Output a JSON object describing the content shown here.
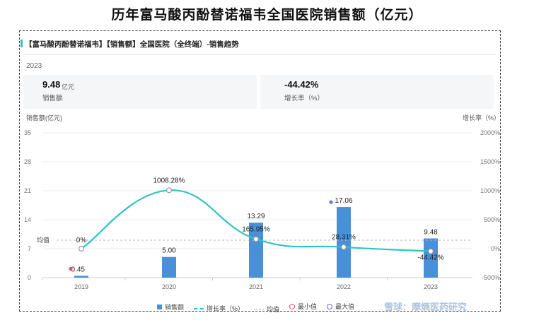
{
  "header": {
    "title": "历年富马酸丙酚替诺福韦全国医院销售额（亿元）"
  },
  "panel": {
    "title": "【富马酸丙酚替诺福韦】【销售额】全国医院（全终端）-销售趋势",
    "year": "2023",
    "metrics": [
      {
        "value": "9.48",
        "unit": "亿元",
        "label": "销售额"
      },
      {
        "value": "-44.42%",
        "unit": "",
        "label": "增长率（%）"
      }
    ]
  },
  "watermark": "雪球：摩熵医药研究",
  "chart_data": {
    "type": "bar+line",
    "categories": [
      "2019",
      "2020",
      "2021",
      "2022",
      "2023"
    ],
    "series": [
      {
        "name": "销售额",
        "type": "bar",
        "axis": "left",
        "color": "#4a90d9",
        "values": [
          0.45,
          5.0,
          13.29,
          17.06,
          9.48
        ],
        "labels": [
          "0.45",
          "5.00",
          "13.29",
          "17.06",
          "9.48"
        ]
      },
      {
        "name": "增长率（%）",
        "type": "line",
        "axis": "right",
        "color": "#2ec4c4",
        "values": [
          0,
          1008.28,
          165.95,
          28.31,
          -44.42
        ],
        "labels": [
          "0%",
          "1008.28%",
          "165.95%",
          "28.31%",
          "-44.42%"
        ]
      }
    ],
    "y_left": {
      "label": "销售额(亿元)",
      "ticks": [
        0,
        7,
        14,
        21,
        28,
        35
      ],
      "range": [
        0,
        35
      ]
    },
    "y_right": {
      "label": "增长率（%）",
      "ticks": [
        "-500%",
        "0%",
        "500%",
        "1000%",
        "1500%",
        "2000%"
      ],
      "range": [
        -500,
        2000
      ]
    },
    "average": {
      "label": "均值",
      "value": 9.056
    },
    "min_marker": {
      "category": "2019",
      "value": 0.45,
      "color": "#e84a7f"
    },
    "max_marker": {
      "category": "2022",
      "value": 17.06,
      "color": "#6b73d6"
    },
    "legend": [
      "销售额",
      "增长率（%）",
      "均值",
      "最小值",
      "最大值"
    ],
    "grid": true,
    "legend_position": "bottom"
  }
}
